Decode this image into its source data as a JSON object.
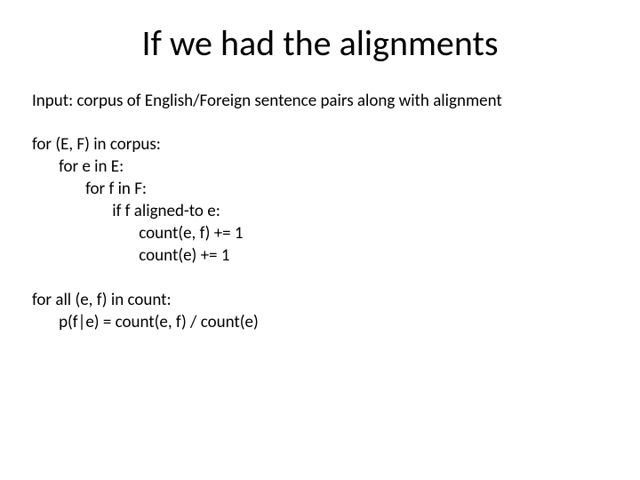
{
  "title": {
    "text": "If we had the alignments",
    "fontsize": 40,
    "color": "#000000"
  },
  "body": {
    "fontsize": 19,
    "color": "#000000",
    "intro": "Input: corpus of English/Foreign sentence pairs along with alignment",
    "algo1": {
      "l1": "for (E, F) in corpus:",
      "l2": "       for e in E:",
      "l3": "              for f in F:",
      "l4": "                     if f aligned-to e:",
      "l5": "                            count(e, f) += 1",
      "l6": "                            count(e) += 1"
    },
    "algo2": {
      "l1": "for all (e, f) in count:",
      "l2": "       p(f|e) = count(e, f) / count(e)"
    }
  },
  "background_color": "#ffffff"
}
